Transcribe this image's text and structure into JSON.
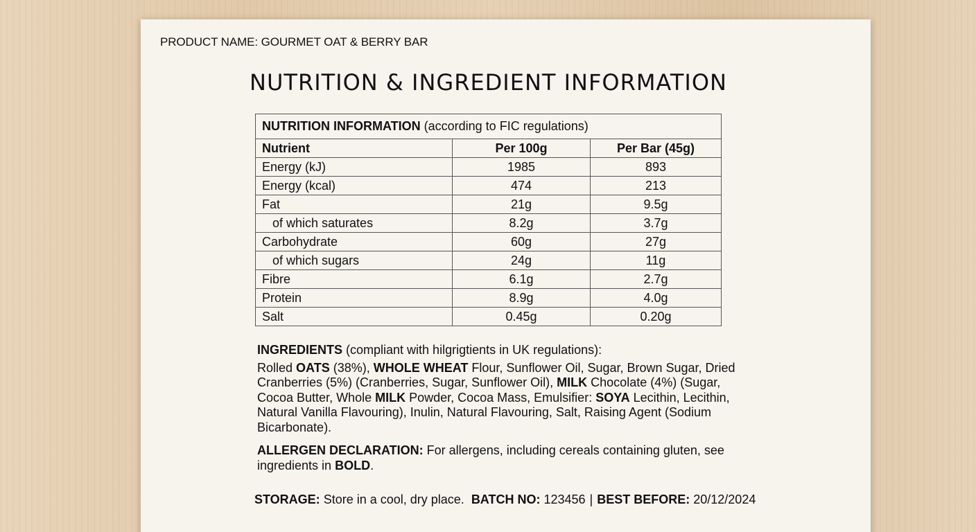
{
  "product_name": "PRODUCT NAME: GOURMET OAT & BERRY BAR",
  "title": "NUTRITION & INGREDIENT INFORMATION",
  "nutrition": {
    "caption_bold": "NUTRITION INFORMATION",
    "caption_rest": " (according to FIC regulations)",
    "headers": [
      "Nutrient",
      "Per 100g",
      "Per Bar (45g)"
    ],
    "rows": [
      {
        "name": "Energy (kJ)",
        "per100": "1985",
        "perbar": "893"
      },
      {
        "name": "Energy (kcal)",
        "per100": "474",
        "perbar": "213"
      },
      {
        "name": "Fat",
        "per100": "21g",
        "perbar": "9.5g"
      },
      {
        "name": "of which saturates",
        "per100": "8.2g",
        "perbar": "3.7g"
      },
      {
        "name": "Carbohydrate",
        "per100": "60g",
        "perbar": "27g"
      },
      {
        "name": "of which sugars",
        "per100": "24g",
        "perbar": "11g"
      },
      {
        "name": "Fibre",
        "per100": "6.1g",
        "perbar": "2.7g"
      },
      {
        "name": "Protein",
        "per100": "8.9g",
        "perbar": "4.0g"
      },
      {
        "name": "Salt",
        "per100": "0.45g",
        "perbar": "0.20g"
      }
    ]
  },
  "ingredients": {
    "heading_bold": "INGREDIENTS",
    "heading_rest": " (compliant with hilgrigtients in UK regulations):",
    "parts": [
      {
        "t": "Rolled ",
        "b": false
      },
      {
        "t": "OATS",
        "b": true
      },
      {
        "t": " (38%), ",
        "b": false
      },
      {
        "t": "WHOLE WHEAT",
        "b": true
      },
      {
        "t": " Flour, Sunflower Oil, Sugar, Brown Sugar, Dried Cranberries (5%) (Cranberries, Sugar, Sunflower Oil), ",
        "b": false
      },
      {
        "t": "MILK",
        "b": true
      },
      {
        "t": " Chocolate (4%) (Sugar, Cocoa Butter, Whole ",
        "b": false
      },
      {
        "t": "MILK",
        "b": true
      },
      {
        "t": " Powder, Cocoa Mass, Emulsifier: ",
        "b": false
      },
      {
        "t": "SOYA",
        "b": true
      },
      {
        "t": " Lecithin, Lecithin, Natural Vanilla Flavouring), Inulin, Natural Flavouring, Salt, Raising Agent (Sodium Bicarbonate).",
        "b": false
      }
    ]
  },
  "allergen": {
    "label": "ALLERGEN DECLARATION:",
    "text": " For allergens, including cereals containing gluten, see ingredients in ",
    "bold_word": "BOLD",
    "end": "."
  },
  "footer": {
    "storage_label": "STORAGE:",
    "storage_text": " Store in a cool, dry place.",
    "batch_label": "BATCH NO:",
    "batch_value": " 123456",
    "separator": "|",
    "best_label": "BEST BEFORE:",
    "best_value": " 20/12/2024"
  }
}
